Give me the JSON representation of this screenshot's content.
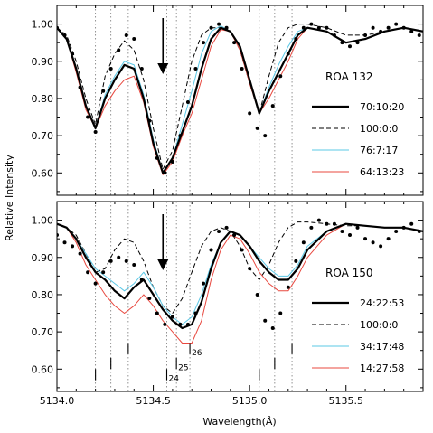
{
  "chart_data": [
    {
      "type": "line",
      "label": "ROA 132",
      "xlim": [
        5134.0,
        5135.9
      ],
      "ylim": [
        0.54,
        1.05
      ],
      "ylabel": "Relative Intensity",
      "yticks": [
        "1.00",
        "0.90",
        "0.80",
        "0.70",
        "0.60"
      ],
      "arrow_x": 5134.55,
      "legend": [
        {
          "label": "70:10:20",
          "style": "thick-black"
        },
        {
          "label": "100:0:0",
          "style": "dashed-black"
        },
        {
          "label": "76:7:17",
          "style": "cyan"
        },
        {
          "label": "64:13:23",
          "style": "red"
        }
      ],
      "series": [
        {
          "name": "70:10:20",
          "color": "#000000",
          "x": [
            5134.0,
            5134.05,
            5134.1,
            5134.15,
            5134.2,
            5134.25,
            5134.3,
            5134.35,
            5134.4,
            5134.45,
            5134.5,
            5134.55,
            5134.6,
            5134.65,
            5134.7,
            5134.75,
            5134.8,
            5134.85,
            5134.9,
            5134.95,
            5135.0,
            5135.05,
            5135.1,
            5135.15,
            5135.2,
            5135.25,
            5135.3,
            5135.4,
            5135.5,
            5135.6,
            5135.7,
            5135.8,
            5135.9
          ],
          "y": [
            0.99,
            0.96,
            0.88,
            0.78,
            0.72,
            0.8,
            0.85,
            0.89,
            0.88,
            0.8,
            0.68,
            0.6,
            0.64,
            0.71,
            0.78,
            0.88,
            0.96,
            0.99,
            0.98,
            0.94,
            0.85,
            0.76,
            0.82,
            0.87,
            0.92,
            0.97,
            0.99,
            0.98,
            0.95,
            0.96,
            0.98,
            0.99,
            0.98
          ]
        },
        {
          "name": "100:0:0",
          "color": "#000000",
          "x": [
            5134.0,
            5134.05,
            5134.1,
            5134.15,
            5134.2,
            5134.25,
            5134.3,
            5134.35,
            5134.4,
            5134.45,
            5134.5,
            5134.55,
            5134.6,
            5134.65,
            5134.7,
            5134.75,
            5134.8,
            5134.85,
            5134.9,
            5134.95,
            5135.0,
            5135.05,
            5135.1,
            5135.15,
            5135.2,
            5135.25,
            5135.3,
            5135.4,
            5135.5,
            5135.6,
            5135.7,
            5135.8,
            5135.9
          ],
          "y": [
            0.99,
            0.97,
            0.9,
            0.8,
            0.73,
            0.86,
            0.92,
            0.955,
            0.93,
            0.85,
            0.72,
            0.61,
            0.66,
            0.78,
            0.9,
            0.97,
            0.99,
            0.99,
            0.98,
            0.93,
            0.84,
            0.76,
            0.86,
            0.95,
            0.99,
            1.0,
            1.0,
            0.99,
            0.97,
            0.97,
            0.98,
            0.99,
            0.98
          ]
        },
        {
          "name": "76:7:17",
          "color": "#5bc8e6",
          "x": [
            5134.0,
            5134.05,
            5134.1,
            5134.15,
            5134.2,
            5134.25,
            5134.3,
            5134.35,
            5134.4,
            5134.45,
            5134.5,
            5134.55,
            5134.6,
            5134.65,
            5134.7,
            5134.75,
            5134.8,
            5134.85,
            5134.9,
            5134.95,
            5135.0,
            5135.05,
            5135.1,
            5135.15,
            5135.2,
            5135.25,
            5135.3,
            5135.4,
            5135.5,
            5135.6,
            5135.7,
            5135.8,
            5135.9
          ],
          "y": [
            0.99,
            0.96,
            0.88,
            0.78,
            0.72,
            0.81,
            0.86,
            0.9,
            0.89,
            0.81,
            0.69,
            0.6,
            0.64,
            0.73,
            0.82,
            0.92,
            0.98,
            0.995,
            0.98,
            0.94,
            0.85,
            0.76,
            0.83,
            0.89,
            0.94,
            0.98,
            0.99,
            0.98,
            0.95,
            0.96,
            0.98,
            0.99,
            0.98
          ]
        },
        {
          "name": "64:13:23",
          "color": "#e8483f",
          "x": [
            5134.0,
            5134.05,
            5134.1,
            5134.15,
            5134.2,
            5134.25,
            5134.3,
            5134.35,
            5134.4,
            5134.45,
            5134.5,
            5134.55,
            5134.6,
            5134.65,
            5134.7,
            5134.75,
            5134.8,
            5134.85,
            5134.9,
            5134.95,
            5135.0,
            5135.05,
            5135.1,
            5135.15,
            5135.2,
            5135.25,
            5135.3,
            5135.4,
            5135.5,
            5135.6,
            5135.7,
            5135.8,
            5135.9
          ],
          "y": [
            0.99,
            0.96,
            0.87,
            0.77,
            0.72,
            0.78,
            0.82,
            0.85,
            0.86,
            0.79,
            0.67,
            0.595,
            0.63,
            0.7,
            0.76,
            0.85,
            0.94,
            0.985,
            0.98,
            0.93,
            0.84,
            0.76,
            0.8,
            0.85,
            0.9,
            0.96,
            0.99,
            0.98,
            0.95,
            0.96,
            0.98,
            0.99,
            0.98
          ]
        },
        {
          "name": "observed",
          "color": "#000000",
          "x": [
            5134.0,
            5134.04,
            5134.08,
            5134.12,
            5134.16,
            5134.2,
            5134.24,
            5134.28,
            5134.32,
            5134.36,
            5134.4,
            5134.44,
            5134.48,
            5134.52,
            5134.56,
            5134.6,
            5134.64,
            5134.68,
            5134.72,
            5134.76,
            5134.8,
            5134.84,
            5134.88,
            5134.92,
            5134.96,
            5135.0,
            5135.04,
            5135.08,
            5135.12,
            5135.16,
            5135.2,
            5135.24,
            5135.28,
            5135.32,
            5135.36,
            5135.4,
            5135.44,
            5135.48,
            5135.52,
            5135.56,
            5135.6,
            5135.64,
            5135.68,
            5135.72,
            5135.76,
            5135.8,
            5135.84,
            5135.88
          ],
          "y": [
            0.99,
            0.97,
            0.92,
            0.83,
            0.75,
            0.71,
            0.82,
            0.88,
            0.93,
            0.97,
            0.96,
            0.88,
            0.74,
            0.64,
            0.6,
            0.63,
            0.7,
            0.79,
            0.88,
            0.95,
            0.99,
            1.0,
            0.99,
            0.95,
            0.88,
            0.76,
            0.72,
            0.7,
            0.78,
            0.86,
            0.92,
            0.96,
            0.99,
            1.0,
            0.99,
            0.99,
            0.97,
            0.95,
            0.94,
            0.95,
            0.97,
            0.99,
            0.98,
            0.99,
            1.0,
            0.99,
            0.98,
            0.97
          ]
        }
      ]
    },
    {
      "type": "line",
      "label": "ROA 150",
      "xlim": [
        5134.0,
        5135.9
      ],
      "ylim": [
        0.54,
        1.05
      ],
      "xlabel": "Wavelength(Å)",
      "yticks": [
        "1.00",
        "0.90",
        "0.80",
        "0.70",
        "0.60"
      ],
      "xticks": [
        "5134.0",
        "5134.5",
        "5135.0",
        "5135.5"
      ],
      "xtick_values": [
        5134.0,
        5134.5,
        5135.0,
        5135.5
      ],
      "arrow_x": 5134.55,
      "line_markers": [
        {
          "x": 5134.2,
          "ymin": 0.57,
          "ymax": 0.6,
          "label": ""
        },
        {
          "x": 5134.28,
          "ymin": 0.6,
          "ymax": 0.63,
          "label": ""
        },
        {
          "x": 5134.37,
          "ymin": 0.64,
          "ymax": 0.67,
          "label": ""
        },
        {
          "x": 5134.57,
          "ymin": 0.57,
          "ymax": 0.6,
          "label": "24"
        },
        {
          "x": 5134.62,
          "ymin": 0.6,
          "ymax": 0.63,
          "label": "25"
        },
        {
          "x": 5134.69,
          "ymin": 0.64,
          "ymax": 0.67,
          "label": "26"
        },
        {
          "x": 5135.05,
          "ymin": 0.57,
          "ymax": 0.6,
          "label": ""
        },
        {
          "x": 5135.13,
          "ymin": 0.6,
          "ymax": 0.63,
          "label": ""
        },
        {
          "x": 5135.22,
          "ymin": 0.64,
          "ymax": 0.67,
          "label": ""
        }
      ],
      "legend": [
        {
          "label": "24:22:53",
          "style": "thick-black"
        },
        {
          "label": "100:0:0",
          "style": "dashed-black"
        },
        {
          "label": "34:17:48",
          "style": "cyan"
        },
        {
          "label": "14:27:58",
          "style": "red"
        }
      ],
      "series": [
        {
          "name": "24:22:53",
          "color": "#000000",
          "x": [
            5134.0,
            5134.05,
            5134.1,
            5134.15,
            5134.2,
            5134.25,
            5134.3,
            5134.35,
            5134.4,
            5134.45,
            5134.5,
            5134.55,
            5134.6,
            5134.65,
            5134.7,
            5134.75,
            5134.8,
            5134.85,
            5134.9,
            5134.95,
            5135.0,
            5135.05,
            5135.1,
            5135.15,
            5135.2,
            5135.25,
            5135.3,
            5135.4,
            5135.5,
            5135.6,
            5135.7,
            5135.8,
            5135.9
          ],
          "y": [
            0.99,
            0.98,
            0.95,
            0.9,
            0.86,
            0.84,
            0.81,
            0.79,
            0.82,
            0.84,
            0.8,
            0.76,
            0.73,
            0.71,
            0.72,
            0.78,
            0.87,
            0.94,
            0.97,
            0.96,
            0.93,
            0.89,
            0.86,
            0.84,
            0.84,
            0.87,
            0.92,
            0.97,
            0.99,
            0.985,
            0.98,
            0.98,
            0.97
          ]
        },
        {
          "name": "100:0:0",
          "color": "#000000",
          "x": [
            5134.0,
            5134.05,
            5134.1,
            5134.15,
            5134.2,
            5134.25,
            5134.3,
            5134.35,
            5134.4,
            5134.45,
            5134.5,
            5134.55,
            5134.6,
            5134.65,
            5134.7,
            5134.75,
            5134.8,
            5134.85,
            5134.9,
            5134.95,
            5135.0,
            5135.05,
            5135.1,
            5135.15,
            5135.2,
            5135.25,
            5135.3,
            5135.4,
            5135.5,
            5135.6,
            5135.7,
            5135.8,
            5135.9
          ],
          "y": [
            0.99,
            0.98,
            0.96,
            0.91,
            0.86,
            0.87,
            0.92,
            0.95,
            0.94,
            0.89,
            0.82,
            0.77,
            0.75,
            0.79,
            0.86,
            0.93,
            0.97,
            0.98,
            0.97,
            0.93,
            0.87,
            0.84,
            0.88,
            0.94,
            0.98,
            0.995,
            0.995,
            0.99,
            0.985,
            0.985,
            0.98,
            0.98,
            0.97
          ]
        },
        {
          "name": "34:17:48",
          "color": "#5bc8e6",
          "x": [
            5134.0,
            5134.05,
            5134.1,
            5134.15,
            5134.2,
            5134.25,
            5134.3,
            5134.35,
            5134.4,
            5134.45,
            5134.5,
            5134.55,
            5134.6,
            5134.65,
            5134.7,
            5134.75,
            5134.8,
            5134.85,
            5134.9,
            5134.95,
            5135.0,
            5135.05,
            5135.1,
            5135.15,
            5135.2,
            5135.25,
            5135.3,
            5135.4,
            5135.5,
            5135.6,
            5135.7,
            5135.8,
            5135.9
          ],
          "y": [
            0.99,
            0.98,
            0.95,
            0.91,
            0.87,
            0.85,
            0.83,
            0.81,
            0.83,
            0.86,
            0.82,
            0.77,
            0.74,
            0.72,
            0.74,
            0.8,
            0.88,
            0.94,
            0.97,
            0.96,
            0.93,
            0.9,
            0.87,
            0.85,
            0.85,
            0.88,
            0.93,
            0.97,
            0.99,
            0.985,
            0.98,
            0.98,
            0.97
          ]
        },
        {
          "name": "14:27:58",
          "color": "#e8483f",
          "x": [
            5134.0,
            5134.05,
            5134.1,
            5134.15,
            5134.2,
            5134.25,
            5134.3,
            5134.35,
            5134.4,
            5134.45,
            5134.5,
            5134.55,
            5134.6,
            5134.65,
            5134.7,
            5134.75,
            5134.8,
            5134.85,
            5134.9,
            5134.95,
            5135.0,
            5135.05,
            5135.1,
            5135.15,
            5135.2,
            5135.25,
            5135.3,
            5135.4,
            5135.5,
            5135.6,
            5135.7,
            5135.8,
            5135.9
          ],
          "y": [
            0.99,
            0.98,
            0.94,
            0.88,
            0.84,
            0.8,
            0.77,
            0.75,
            0.77,
            0.8,
            0.77,
            0.73,
            0.7,
            0.67,
            0.67,
            0.73,
            0.84,
            0.92,
            0.96,
            0.95,
            0.91,
            0.86,
            0.83,
            0.81,
            0.81,
            0.85,
            0.9,
            0.96,
            0.99,
            0.985,
            0.98,
            0.98,
            0.97
          ]
        },
        {
          "name": "observed",
          "color": "#000000",
          "x": [
            5134.0,
            5134.04,
            5134.08,
            5134.12,
            5134.16,
            5134.2,
            5134.24,
            5134.28,
            5134.32,
            5134.36,
            5134.4,
            5134.44,
            5134.48,
            5134.52,
            5134.56,
            5134.6,
            5134.64,
            5134.68,
            5134.72,
            5134.76,
            5134.8,
            5134.84,
            5134.88,
            5134.92,
            5134.96,
            5135.0,
            5135.04,
            5135.08,
            5135.12,
            5135.16,
            5135.2,
            5135.24,
            5135.28,
            5135.32,
            5135.36,
            5135.4,
            5135.44,
            5135.48,
            5135.52,
            5135.56,
            5135.6,
            5135.64,
            5135.68,
            5135.72,
            5135.76,
            5135.8,
            5135.84,
            5135.88
          ],
          "y": [
            0.96,
            0.94,
            0.93,
            0.91,
            0.86,
            0.83,
            0.86,
            0.89,
            0.9,
            0.89,
            0.88,
            0.84,
            0.79,
            0.75,
            0.72,
            0.74,
            0.72,
            0.72,
            0.75,
            0.83,
            0.92,
            0.97,
            0.98,
            0.96,
            0.92,
            0.87,
            0.8,
            0.73,
            0.71,
            0.75,
            0.82,
            0.89,
            0.94,
            0.98,
            1.0,
            0.99,
            0.99,
            0.97,
            0.96,
            0.98,
            0.95,
            0.94,
            0.93,
            0.95,
            0.97,
            0.98,
            0.99,
            0.97
          ]
        }
      ]
    }
  ]
}
